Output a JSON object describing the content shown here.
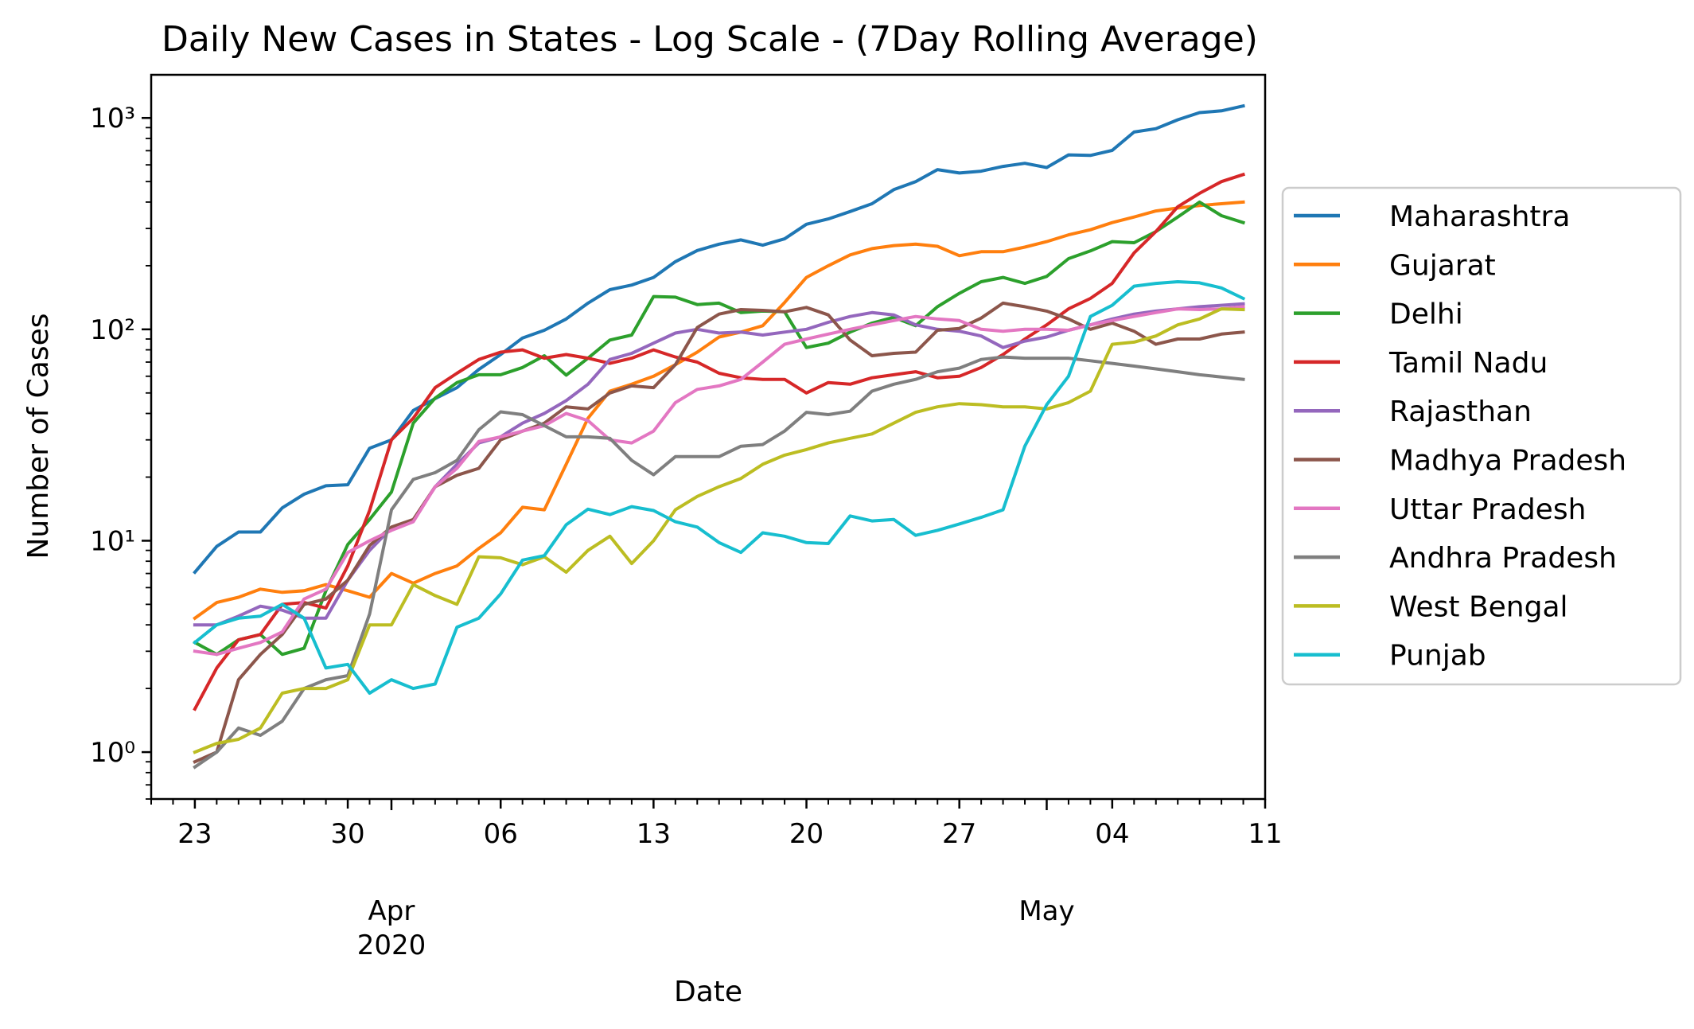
{
  "chart_data": {
    "type": "line",
    "title": "Daily New Cases in States - Log Scale - (7Day Rolling Average)",
    "xlabel": "Date",
    "ylabel": "Number of Cases",
    "yscale": "log",
    "ylim": [
      0.6,
      1600
    ],
    "xlim": [
      "2020-03-21",
      "2020-05-11"
    ],
    "grid": false,
    "legend_position": "right, outside plot",
    "x_start": "2020-03-23",
    "x_end": "2020-05-10",
    "x_tick_labels": [
      {
        "date": "2020-03-23",
        "label": "23"
      },
      {
        "date": "2020-03-30",
        "label": "30"
      },
      {
        "date": "2020-04-06",
        "label": "06"
      },
      {
        "date": "2020-04-13",
        "label": "13"
      },
      {
        "date": "2020-04-20",
        "label": "20"
      },
      {
        "date": "2020-04-27",
        "label": "27"
      },
      {
        "date": "2020-05-04",
        "label": "04"
      },
      {
        "date": "2020-05-11",
        "label": "11"
      }
    ],
    "x_month_labels": [
      {
        "date": "2020-04-01",
        "line1": "Apr",
        "line2": "2020"
      },
      {
        "date": "2020-05-01",
        "line1": "May",
        "line2": ""
      }
    ],
    "y_ticks": [
      {
        "value": 1,
        "label": "10⁰"
      },
      {
        "value": 10,
        "label": "10¹"
      },
      {
        "value": 100,
        "label": "10²"
      },
      {
        "value": 1000,
        "label": "10³"
      }
    ],
    "series": [
      {
        "name": "Maharashtra",
        "color": "#1f77b4",
        "values": [
          7.1,
          9.4,
          11,
          11,
          14.3,
          16.6,
          18.2,
          18.4,
          27.4,
          30,
          41.3,
          47,
          53,
          64.6,
          76,
          91,
          99,
          112,
          133,
          154,
          162,
          176,
          209,
          236,
          253,
          265,
          250,
          268,
          314,
          333,
          361,
          393,
          458,
          500,
          570,
          549,
          560,
          590,
          610,
          583,
          669,
          665,
          702,
          858,
          890,
          980,
          1060,
          1080,
          1140
        ]
      },
      {
        "name": "Gujarat",
        "color": "#ff7f0e",
        "values": [
          4.3,
          5.1,
          5.4,
          5.9,
          5.7,
          5.8,
          6.2,
          5.8,
          5.4,
          7,
          6.3,
          7,
          7.6,
          9.2,
          10.9,
          14.4,
          14,
          23,
          38,
          51,
          55,
          60,
          68,
          78,
          92,
          97,
          104,
          134,
          176,
          200,
          225,
          241,
          249,
          253,
          247,
          223,
          233,
          233,
          245,
          260,
          280,
          296,
          320,
          340,
          363,
          375,
          385,
          393,
          400
        ]
      },
      {
        "name": "Delhi",
        "color": "#2ca02c",
        "values": [
          3.3,
          2.9,
          3.4,
          3.6,
          2.9,
          3.1,
          5.8,
          9.6,
          12.6,
          17,
          36,
          47.3,
          56,
          61,
          61,
          66,
          75,
          60.7,
          73,
          89,
          94,
          143,
          142,
          131,
          133,
          120,
          122,
          121,
          82,
          86,
          97,
          107,
          114,
          104,
          128,
          148,
          168,
          176,
          165,
          178,
          216,
          235,
          260,
          257,
          290,
          340,
          400,
          345,
          320
        ]
      },
      {
        "name": "Tamil Nadu",
        "color": "#d62728",
        "values": [
          1.6,
          2.5,
          3.4,
          3.6,
          5,
          5.1,
          4.8,
          7.6,
          13.9,
          30,
          38,
          53,
          62,
          72,
          78,
          80,
          73,
          76,
          73,
          69,
          73,
          80,
          74,
          70,
          62,
          59,
          58,
          58,
          50,
          56,
          55,
          59,
          61,
          63,
          59,
          60,
          66,
          76,
          90,
          105,
          125,
          140,
          165,
          230,
          290,
          380,
          440,
          500,
          540
        ]
      },
      {
        "name": "Rajasthan",
        "color": "#9467bd",
        "values": [
          4,
          4,
          4.4,
          4.9,
          4.7,
          4.3,
          4.3,
          6.5,
          9,
          11.5,
          12.5,
          18,
          23,
          29,
          31,
          36,
          40,
          46,
          55,
          72,
          77,
          86,
          96,
          100,
          96,
          97,
          94,
          97,
          100,
          108,
          115,
          120,
          117,
          105,
          100,
          98,
          93,
          82,
          88,
          92,
          99,
          105,
          112,
          118,
          122,
          125,
          128,
          130,
          132
        ]
      },
      {
        "name": "Madhya Pradesh",
        "color": "#8c564b",
        "values": [
          0.9,
          1,
          2.2,
          2.9,
          3.6,
          5,
          5.3,
          6.5,
          9.5,
          11.6,
          12.6,
          18,
          20.4,
          22,
          30,
          33,
          36,
          43,
          42,
          50,
          54,
          53,
          68,
          102,
          118,
          124,
          123,
          121,
          127,
          117,
          89,
          75,
          77,
          78,
          99,
          101,
          113,
          133,
          128,
          122,
          112,
          100,
          107,
          98,
          85,
          90,
          90,
          95,
          97
        ]
      },
      {
        "name": "Uttar Pradesh",
        "color": "#e377c2",
        "values": [
          3,
          2.9,
          3.1,
          3.3,
          3.7,
          5.3,
          5.9,
          8.8,
          10,
          11.2,
          12.3,
          18,
          22,
          29.5,
          31,
          33,
          35,
          40,
          37,
          30,
          29,
          33,
          45,
          52,
          54,
          58,
          70,
          85,
          90,
          95,
          100,
          105,
          110,
          115,
          112,
          110,
          100,
          98,
          100,
          100,
          99,
          105,
          110,
          115,
          120,
          125,
          124,
          125,
          128
        ]
      },
      {
        "name": "Andhra Pradesh",
        "color": "#7f7f7f",
        "values": [
          0.85,
          1,
          1.3,
          1.2,
          1.4,
          2,
          2.2,
          2.3,
          4.5,
          14,
          19.5,
          21,
          24,
          33.5,
          40.7,
          39.5,
          35,
          31,
          31,
          30.5,
          24,
          20.5,
          25,
          25,
          25,
          28,
          28.5,
          33,
          40.5,
          39.5,
          41,
          51,
          55,
          58,
          63,
          65.5,
          72,
          74,
          73,
          73,
          73,
          71,
          69,
          67,
          65,
          63,
          61,
          59.5,
          58
        ]
      },
      {
        "name": "West Bengal",
        "color": "#bcbd22",
        "values": [
          1,
          1.1,
          1.15,
          1.3,
          1.9,
          2,
          2,
          2.2,
          4,
          4,
          6.2,
          5.5,
          5,
          8.4,
          8.3,
          7.7,
          8.4,
          7.1,
          9,
          10.5,
          7.8,
          10,
          14,
          16.2,
          18,
          19.7,
          23,
          25.4,
          27,
          29,
          30.5,
          32,
          36,
          40.5,
          43,
          44.5,
          44,
          43,
          43,
          42,
          45,
          51,
          85,
          87,
          93,
          105,
          112,
          125,
          124
        ]
      },
      {
        "name": "Punjab",
        "color": "#17becf",
        "values": [
          3.3,
          4,
          4.3,
          4.4,
          5,
          4.3,
          2.5,
          2.6,
          1.9,
          2.2,
          2,
          2.1,
          3.9,
          4.3,
          5.6,
          8.1,
          8.5,
          11.9,
          14.1,
          13.3,
          14.5,
          13.9,
          12.3,
          11.6,
          9.8,
          8.8,
          10.9,
          10.5,
          9.8,
          9.7,
          13.1,
          12.4,
          12.6,
          10.6,
          11.2,
          12,
          12.9,
          14,
          28,
          44,
          60,
          115,
          130,
          160,
          165,
          168,
          166,
          157,
          140
        ]
      }
    ]
  }
}
